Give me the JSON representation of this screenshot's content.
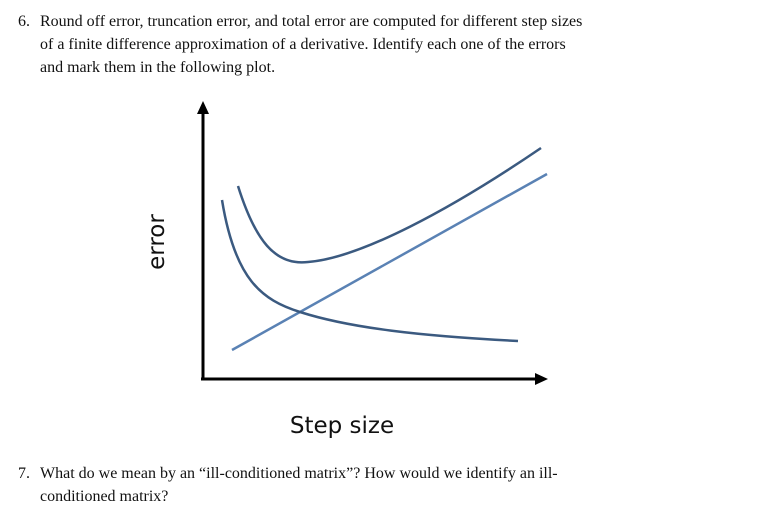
{
  "question6": {
    "number": "6.",
    "line1": "Round off error, truncation error, and total error are computed for different step sizes",
    "line2": "of a finite difference approximation of a derivative. Identify each one of the errors",
    "line3": "and mark them in the following plot."
  },
  "plot": {
    "ylabel": "error",
    "xlabel": "Step size",
    "colors": {
      "dark_curve": "#3b5a80",
      "light_line": "#5a82b4",
      "axes": "#000000"
    }
  },
  "question7": {
    "number": "7.",
    "line1": "What do we mean by an “ill-conditioned matrix”? How would we identify an ill-",
    "line2": "conditioned matrix?"
  }
}
